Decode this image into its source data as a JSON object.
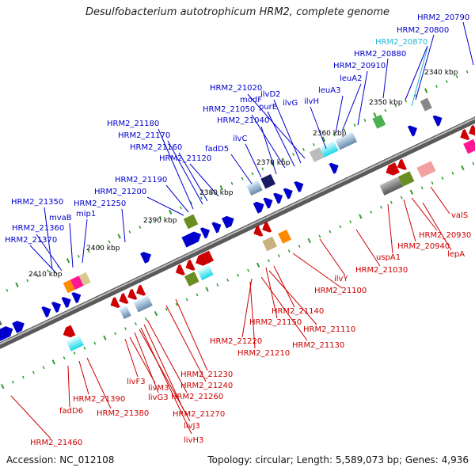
{
  "title": "Desulfobacterium autotrophicum HRM2, complete genome",
  "accession": "Accession: NC_012108",
  "topology": "Topology: circular; Length: 5,589,073 bp; Genes: 4,936",
  "colors": {
    "forward": "#0000cc",
    "reverse": "#cc0000",
    "pseudo": "#1fb8d6",
    "backbone": "#808080",
    "tick": "#2e9b2e"
  },
  "kbp_ticks": [
    "2340 kbp",
    "2350 kbp",
    "2360 kbp",
    "2370 kbp",
    "2380 kbp",
    "2390 kbp",
    "2400 kbp",
    "2410 kbp"
  ],
  "top_labels": [
    {
      "text": "HRM2_20790",
      "style": "forward"
    },
    {
      "text": "HRM2_20800",
      "style": "forward"
    },
    {
      "text": "HRM2_20870",
      "style": "pseudo"
    },
    {
      "text": "HRM2_20880",
      "style": "forward"
    },
    {
      "text": "HRM2_20910",
      "style": "forward"
    },
    {
      "text": "leuA2",
      "style": "forward"
    },
    {
      "text": "leuA3",
      "style": "forward"
    },
    {
      "text": "HRM2_21020",
      "style": "forward"
    },
    {
      "text": "ilvD2",
      "style": "forward"
    },
    {
      "text": "modF",
      "style": "forward"
    },
    {
      "text": "purE",
      "style": "forward"
    },
    {
      "text": "ilvG",
      "style": "forward"
    },
    {
      "text": "ilvH",
      "style": "forward"
    },
    {
      "text": "HRM2_21050",
      "style": "forward"
    },
    {
      "text": "HRM2_21040",
      "style": "forward"
    },
    {
      "text": "HRM2_21180",
      "style": "forward"
    },
    {
      "text": "HRM2_21170",
      "style": "forward"
    },
    {
      "text": "ilvC",
      "style": "forward"
    },
    {
      "text": "HRM2_21160",
      "style": "forward"
    },
    {
      "text": "fadD5",
      "style": "forward"
    },
    {
      "text": "HRM2_21120",
      "style": "forward"
    },
    {
      "text": "HRM2_21190",
      "style": "forward"
    },
    {
      "text": "HRM2_21200",
      "style": "forward"
    },
    {
      "text": "HRM2_21250",
      "style": "forward"
    },
    {
      "text": "HRM2_21350",
      "style": "forward"
    },
    {
      "text": "mvaB",
      "style": "forward"
    },
    {
      "text": "mip1",
      "style": "forward"
    },
    {
      "text": "HRM2_21360",
      "style": "forward"
    },
    {
      "text": "HRM2_21370",
      "style": "forward"
    }
  ],
  "bottom_labels": [
    {
      "text": "valS",
      "style": "reverse"
    },
    {
      "text": "HRM2_20930",
      "style": "reverse"
    },
    {
      "text": "HRM2_20940",
      "style": "reverse"
    },
    {
      "text": "lepA",
      "style": "reverse"
    },
    {
      "text": "uspA1",
      "style": "reverse"
    },
    {
      "text": "HRM2_21030",
      "style": "reverse"
    },
    {
      "text": "ilvY",
      "style": "reverse"
    },
    {
      "text": "HRM2_21100",
      "style": "reverse"
    },
    {
      "text": "HRM2_21140",
      "style": "reverse"
    },
    {
      "text": "HRM2_21150",
      "style": "reverse"
    },
    {
      "text": "HRM2_21110",
      "style": "reverse"
    },
    {
      "text": "HRM2_21130",
      "style": "reverse"
    },
    {
      "text": "HRM2_21220",
      "style": "reverse"
    },
    {
      "text": "HRM2_21210",
      "style": "reverse"
    },
    {
      "text": "HRM2_21230",
      "style": "reverse"
    },
    {
      "text": "HRM2_21240",
      "style": "reverse"
    },
    {
      "text": "livF3",
      "style": "reverse"
    },
    {
      "text": "livM3",
      "style": "reverse"
    },
    {
      "text": "livG3",
      "style": "reverse"
    },
    {
      "text": "HRM2_21260",
      "style": "reverse"
    },
    {
      "text": "HRM2_21270",
      "style": "reverse"
    },
    {
      "text": "livJ3",
      "style": "reverse"
    },
    {
      "text": "livH3",
      "style": "reverse"
    },
    {
      "text": "HRM2_21390",
      "style": "reverse"
    },
    {
      "text": "HRM2_21380",
      "style": "reverse"
    },
    {
      "text": "fadD6",
      "style": "reverse"
    },
    {
      "text": "HRM2_21460",
      "style": "reverse"
    }
  ]
}
